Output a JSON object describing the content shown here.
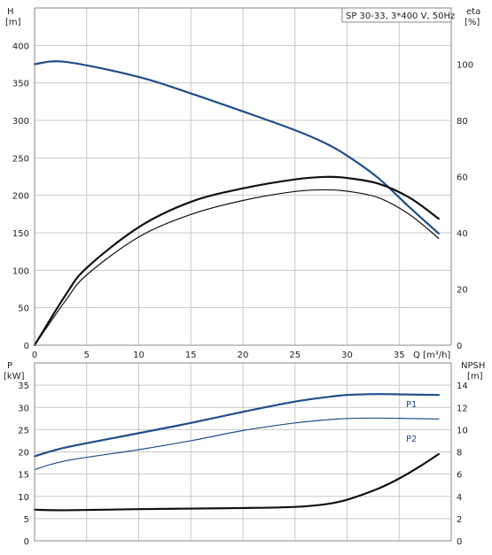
{
  "chart_data": [
    {
      "type": "line",
      "title": "SP 30-33, 3*400 V, 50Hz",
      "xlabel": "Q [m³/h]",
      "ylabel_left": "H\n[m]",
      "ylabel_right": "eta\n[%]",
      "xlim": [
        0,
        40
      ],
      "ylim_left": [
        0,
        450
      ],
      "ylim_right": [
        0,
        120
      ],
      "x_ticks": [
        0,
        5,
        10,
        15,
        20,
        25,
        30,
        35
      ],
      "y_ticks_left": [
        0,
        50,
        100,
        150,
        200,
        250,
        300,
        350,
        400
      ],
      "y_ticks_right": [
        0,
        20,
        40,
        60,
        80,
        100
      ],
      "grid": true,
      "series": [
        {
          "axis": "left",
          "color": "#1f4e8c",
          "x": [
            0,
            3,
            10,
            15,
            20,
            25,
            28,
            30,
            33,
            36,
            38.8
          ],
          "y": [
            375,
            378,
            358,
            336,
            312,
            287,
            269,
            253,
            223,
            184,
            149
          ]
        },
        {
          "axis": "right",
          "color": "#111111",
          "x": [
            0,
            3,
            5,
            10,
            15,
            20,
            25,
            28,
            30,
            33,
            36,
            38.8
          ],
          "y": [
            0,
            16,
            25,
            38.5,
            46.5,
            51.5,
            54.7,
            55.3,
            54.8,
            52.5,
            46.5,
            38
          ]
        },
        {
          "axis": "right",
          "color": "#111111",
          "x": [
            0,
            3,
            5,
            10,
            15,
            20,
            25,
            28,
            30,
            33,
            36,
            38.8
          ],
          "y": [
            0,
            18,
            27.5,
            42,
            51,
            55.8,
            59,
            59.9,
            59.5,
            57.5,
            52.5,
            45
          ]
        }
      ]
    },
    {
      "type": "line",
      "xlabel": "",
      "ylabel_left": "P\n[kW]",
      "ylabel_right": "NPSH\n[m]",
      "xlim": [
        0,
        40
      ],
      "ylim_left": [
        0,
        40
      ],
      "ylim_right": [
        0,
        16
      ],
      "y_ticks_left": [
        0,
        5,
        10,
        15,
        20,
        25,
        30,
        35
      ],
      "y_ticks_right": [
        0,
        2,
        4,
        6,
        8,
        10,
        12,
        14
      ],
      "grid": true,
      "series": [
        {
          "name": "P1",
          "axis": "left",
          "color": "#1f4e8c",
          "x": [
            0,
            3,
            10,
            15,
            20,
            25,
            28,
            30,
            33,
            36,
            38.8
          ],
          "y": [
            19,
            21,
            24.2,
            26.5,
            29,
            31.3,
            32.3,
            32.8,
            33,
            32.9,
            32.8
          ]
        },
        {
          "name": "P2",
          "axis": "left",
          "color": "#1f4e8c",
          "x": [
            0,
            3,
            10,
            15,
            20,
            25,
            28,
            30,
            33,
            36,
            38.8
          ],
          "y": [
            16,
            18,
            20.5,
            22.5,
            24.8,
            26.5,
            27.2,
            27.5,
            27.6,
            27.5,
            27.4
          ]
        },
        {
          "axis": "right",
          "color": "#111111",
          "x": [
            0,
            3,
            10,
            15,
            20,
            25,
            28,
            30,
            33,
            35,
            37,
            38.8
          ],
          "y": [
            2.8,
            2.75,
            2.85,
            2.9,
            2.95,
            3.05,
            3.3,
            3.7,
            4.7,
            5.6,
            6.7,
            7.8
          ]
        }
      ]
    }
  ]
}
